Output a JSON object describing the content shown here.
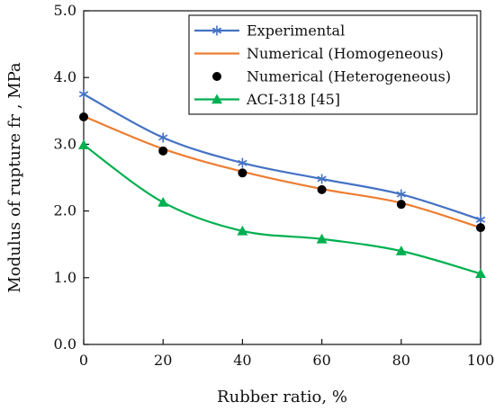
{
  "chart_data": {
    "type": "line",
    "title": "",
    "xlabel": "Rubber ratio, %",
    "ylabel": "Modulus of rupture fr , MPa",
    "x": [
      0,
      20,
      40,
      60,
      80,
      100
    ],
    "xticks": [
      "0",
      "20",
      "40",
      "60",
      "80",
      "100"
    ],
    "yticks": [
      "0.0",
      "1.0",
      "2.0",
      "3.0",
      "4.0",
      "5.0"
    ],
    "xlim": [
      0,
      100
    ],
    "ylim": [
      0,
      5
    ],
    "grid": false,
    "legend_position": "top-right",
    "series": [
      {
        "name": "Experimental",
        "values": [
          3.75,
          3.1,
          2.72,
          2.48,
          2.25,
          1.87
        ],
        "color": "#4472C4",
        "marker": "asterisk",
        "line": true
      },
      {
        "name": "Numerical (Homogeneous)",
        "values": [
          3.42,
          2.93,
          2.59,
          2.33,
          2.12,
          1.75
        ],
        "color": "#ED7D31",
        "marker": "none",
        "line": true
      },
      {
        "name": "Numerical (Heterogeneous)",
        "values": [
          3.41,
          2.9,
          2.57,
          2.32,
          2.1,
          1.75
        ],
        "color": "#000000",
        "marker": "circle",
        "line": false
      },
      {
        "name": "ACI-318 [45]",
        "values": [
          2.99,
          2.13,
          1.7,
          1.58,
          1.4,
          1.06
        ],
        "color": "#00B050",
        "marker": "triangle",
        "line": true
      }
    ]
  }
}
